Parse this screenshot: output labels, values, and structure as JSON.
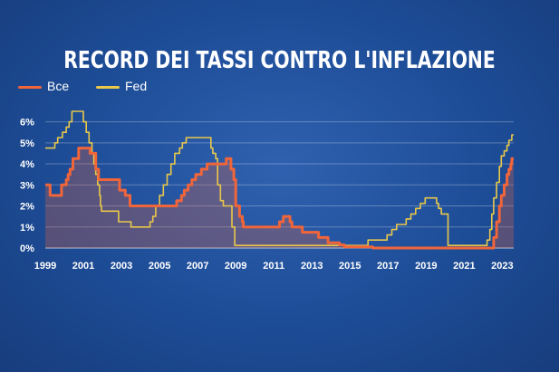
{
  "title": "RECORD DEI TASSI CONTRO L'INFLAZIONE",
  "legend": [
    {
      "name": "Bce",
      "color": "#f0653a"
    },
    {
      "name": "Fed",
      "color": "#e9c84a"
    }
  ],
  "chart_data": {
    "type": "line",
    "title": "RECORD DEI TASSI CONTRO L'INFLAZIONE",
    "xlabel": "",
    "ylabel": "",
    "xlim": [
      1999,
      2023.6
    ],
    "ylim": [
      0,
      6.8
    ],
    "grid": true,
    "legend_position": "top-left",
    "x_ticks": [
      "1999",
      "2001",
      "2003",
      "2005",
      "2007",
      "2009",
      "2011",
      "2013",
      "2015",
      "2017",
      "2019",
      "2021",
      "2023"
    ],
    "y_ticks": [
      "0%",
      "1%",
      "2%",
      "3%",
      "4%",
      "5%",
      "6%"
    ],
    "series": [
      {
        "name": "Bce",
        "color": "#f0653a",
        "points": [
          [
            1999.0,
            3.0
          ],
          [
            1999.25,
            2.5
          ],
          [
            1999.85,
            3.0
          ],
          [
            2000.1,
            3.25
          ],
          [
            2000.2,
            3.5
          ],
          [
            2000.3,
            3.75
          ],
          [
            2000.45,
            4.25
          ],
          [
            2000.75,
            4.75
          ],
          [
            2001.35,
            4.5
          ],
          [
            2001.65,
            3.75
          ],
          [
            2001.8,
            3.25
          ],
          [
            2002.9,
            2.75
          ],
          [
            2003.2,
            2.5
          ],
          [
            2003.45,
            2.0
          ],
          [
            2005.9,
            2.25
          ],
          [
            2006.15,
            2.5
          ],
          [
            2006.3,
            2.75
          ],
          [
            2006.5,
            3.0
          ],
          [
            2006.7,
            3.25
          ],
          [
            2006.9,
            3.5
          ],
          [
            2007.2,
            3.75
          ],
          [
            2007.5,
            4.0
          ],
          [
            2008.5,
            4.25
          ],
          [
            2008.75,
            3.75
          ],
          [
            2008.9,
            3.25
          ],
          [
            2009.0,
            2.0
          ],
          [
            2009.2,
            1.5
          ],
          [
            2009.35,
            1.25
          ],
          [
            2009.4,
            1.0
          ],
          [
            2011.3,
            1.25
          ],
          [
            2011.5,
            1.5
          ],
          [
            2011.85,
            1.25
          ],
          [
            2011.95,
            1.0
          ],
          [
            2012.5,
            0.75
          ],
          [
            2013.35,
            0.5
          ],
          [
            2013.85,
            0.25
          ],
          [
            2014.45,
            0.15
          ],
          [
            2014.7,
            0.05
          ],
          [
            2016.2,
            0.0
          ],
          [
            2022.55,
            0.5
          ],
          [
            2022.7,
            1.25
          ],
          [
            2022.85,
            2.0
          ],
          [
            2022.95,
            2.5
          ],
          [
            2023.1,
            3.0
          ],
          [
            2023.25,
            3.5
          ],
          [
            2023.35,
            3.75
          ],
          [
            2023.45,
            4.0
          ],
          [
            2023.5,
            4.25
          ]
        ]
      },
      {
        "name": "Fed",
        "color": "#e9c84a",
        "points": [
          [
            1999.0,
            4.75
          ],
          [
            1999.5,
            5.0
          ],
          [
            1999.65,
            5.25
          ],
          [
            1999.9,
            5.5
          ],
          [
            2000.1,
            5.75
          ],
          [
            2000.25,
            6.0
          ],
          [
            2000.4,
            6.5
          ],
          [
            2001.0,
            6.0
          ],
          [
            2001.15,
            5.5
          ],
          [
            2001.3,
            5.0
          ],
          [
            2001.45,
            4.5
          ],
          [
            2001.55,
            4.0
          ],
          [
            2001.65,
            3.5
          ],
          [
            2001.75,
            3.0
          ],
          [
            2001.85,
            2.5
          ],
          [
            2001.9,
            2.0
          ],
          [
            2001.95,
            1.75
          ],
          [
            2002.85,
            1.25
          ],
          [
            2003.5,
            1.0
          ],
          [
            2004.5,
            1.25
          ],
          [
            2004.65,
            1.5
          ],
          [
            2004.8,
            2.0
          ],
          [
            2005.0,
            2.5
          ],
          [
            2005.2,
            3.0
          ],
          [
            2005.4,
            3.5
          ],
          [
            2005.6,
            4.0
          ],
          [
            2005.8,
            4.5
          ],
          [
            2006.05,
            4.75
          ],
          [
            2006.2,
            5.0
          ],
          [
            2006.4,
            5.25
          ],
          [
            2007.7,
            4.75
          ],
          [
            2007.8,
            4.5
          ],
          [
            2007.95,
            4.25
          ],
          [
            2008.05,
            3.0
          ],
          [
            2008.2,
            2.25
          ],
          [
            2008.35,
            2.0
          ],
          [
            2008.8,
            1.0
          ],
          [
            2008.95,
            0.12
          ],
          [
            2015.95,
            0.38
          ],
          [
            2016.95,
            0.62
          ],
          [
            2017.2,
            0.88
          ],
          [
            2017.45,
            1.12
          ],
          [
            2017.95,
            1.38
          ],
          [
            2018.2,
            1.62
          ],
          [
            2018.45,
            1.88
          ],
          [
            2018.7,
            2.12
          ],
          [
            2018.95,
            2.38
          ],
          [
            2019.55,
            2.12
          ],
          [
            2019.65,
            1.88
          ],
          [
            2019.8,
            1.62
          ],
          [
            2020.15,
            0.12
          ],
          [
            2022.2,
            0.38
          ],
          [
            2022.35,
            0.88
          ],
          [
            2022.45,
            1.62
          ],
          [
            2022.55,
            2.38
          ],
          [
            2022.7,
            3.12
          ],
          [
            2022.85,
            3.88
          ],
          [
            2022.95,
            4.38
          ],
          [
            2023.1,
            4.62
          ],
          [
            2023.25,
            4.88
          ],
          [
            2023.35,
            5.12
          ],
          [
            2023.5,
            5.38
          ]
        ]
      }
    ]
  }
}
